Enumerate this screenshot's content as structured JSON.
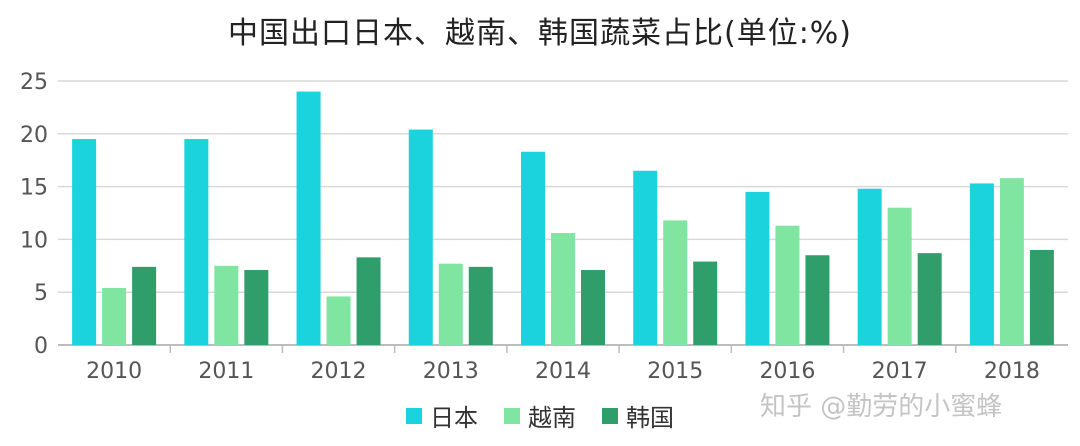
{
  "watermark": "知乎 @勤劳的小蜜蜂",
  "chart_data": {
    "type": "bar",
    "title": "中国出口日本、越南、韩国蔬菜占比(单位:%)",
    "xlabel": "",
    "ylabel": "",
    "categories": [
      "2010",
      "2011",
      "2012",
      "2013",
      "2014",
      "2015",
      "2016",
      "2017",
      "2018"
    ],
    "series": [
      {
        "name": "日本",
        "color": "#1ad3dc",
        "values": [
          19.5,
          19.5,
          24.0,
          20.4,
          18.3,
          16.5,
          14.5,
          14.8,
          15.3
        ]
      },
      {
        "name": "越南",
        "color": "#7fe5a0",
        "values": [
          5.4,
          7.5,
          4.6,
          7.7,
          10.6,
          11.8,
          11.3,
          13.0,
          15.8
        ]
      },
      {
        "name": "韩国",
        "color": "#2f9e6b",
        "values": [
          7.4,
          7.1,
          8.3,
          7.4,
          7.1,
          7.9,
          8.5,
          8.7,
          9.0
        ]
      }
    ],
    "ylim": [
      0,
      25
    ],
    "yticks": [
      0,
      5,
      10,
      15,
      20,
      25
    ],
    "grid": true,
    "legend": "bottom"
  }
}
